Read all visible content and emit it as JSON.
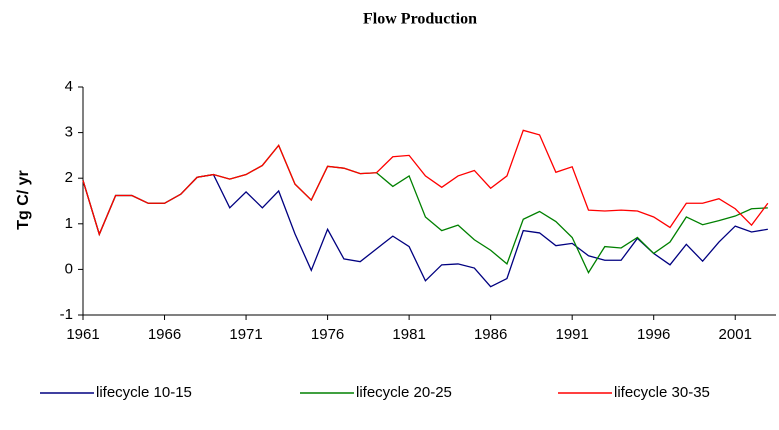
{
  "chart_data": {
    "type": "line",
    "title": "Flow Production",
    "y_label": "Tg C/ yr",
    "x": [
      1961,
      1962,
      1963,
      1964,
      1965,
      1966,
      1967,
      1968,
      1969,
      1970,
      1971,
      1972,
      1973,
      1974,
      1975,
      1976,
      1977,
      1978,
      1979,
      1980,
      1981,
      1982,
      1983,
      1984,
      1985,
      1986,
      1987,
      1988,
      1989,
      1990,
      1991,
      1992,
      1993,
      1994,
      1995,
      1996,
      1997,
      1998,
      1999,
      2000,
      2001,
      2002,
      2003
    ],
    "series": [
      {
        "name": "lifecycle 10-15",
        "color": "#000080",
        "values": [
          1.95,
          0.77,
          1.62,
          1.62,
          1.45,
          1.45,
          1.65,
          2.02,
          2.08,
          1.35,
          1.7,
          1.35,
          1.72,
          0.78,
          -0.02,
          0.88,
          0.23,
          0.17,
          0.45,
          0.73,
          0.5,
          -0.25,
          0.1,
          0.12,
          0.03,
          -0.38,
          -0.2,
          0.85,
          0.8,
          0.52,
          0.57,
          0.3,
          0.2,
          0.2,
          0.68,
          0.35,
          0.1,
          0.55,
          0.18,
          0.6,
          0.95,
          0.82,
          0.88
        ]
      },
      {
        "name": "lifecycle 20-25",
        "color": "#008000",
        "values": [
          1.95,
          0.77,
          1.62,
          1.62,
          1.45,
          1.45,
          1.65,
          2.02,
          2.08,
          1.98,
          2.08,
          2.28,
          2.72,
          1.87,
          1.52,
          2.26,
          2.22,
          2.1,
          2.12,
          1.82,
          2.05,
          1.15,
          0.85,
          0.97,
          0.65,
          0.42,
          0.12,
          1.1,
          1.27,
          1.05,
          0.7,
          -0.07,
          0.5,
          0.47,
          0.7,
          0.35,
          0.6,
          1.15,
          0.98,
          1.07,
          1.17,
          1.33,
          1.35
        ]
      },
      {
        "name": "lifecycle 30-35",
        "color": "#ff0000",
        "values": [
          1.95,
          0.77,
          1.62,
          1.62,
          1.45,
          1.45,
          1.65,
          2.02,
          2.08,
          1.98,
          2.08,
          2.28,
          2.72,
          1.87,
          1.52,
          2.26,
          2.22,
          2.1,
          2.12,
          2.47,
          2.5,
          2.05,
          1.8,
          2.05,
          2.17,
          1.78,
          2.05,
          3.05,
          2.95,
          2.13,
          2.25,
          1.3,
          1.28,
          1.3,
          1.28,
          1.15,
          0.92,
          1.45,
          1.45,
          1.55,
          1.33,
          0.97,
          1.45
        ]
      }
    ],
    "xlim": [
      1961,
      2003.5
    ],
    "xticks": [
      1961,
      1966,
      1971,
      1976,
      1981,
      1986,
      1991,
      1996,
      2001
    ],
    "ylim": [
      -1,
      4
    ],
    "yticks": [
      -1,
      0,
      1,
      2,
      3,
      4
    ],
    "grid": false,
    "legend": "bottom"
  }
}
